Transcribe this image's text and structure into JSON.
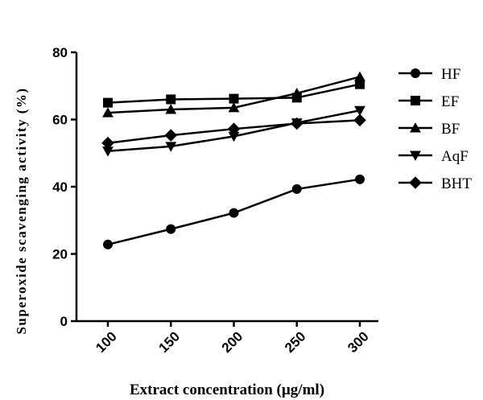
{
  "chart_data": {
    "type": "line",
    "title": "",
    "xlabel": "Extract concentration (µg/ml)",
    "ylabel": "Superoxide scavenging activity (%)",
    "x": [
      100,
      150,
      200,
      250,
      300
    ],
    "categories": [
      "100",
      "150",
      "200",
      "250",
      "300"
    ],
    "ylim": [
      0,
      80
    ],
    "yticks": [
      "0",
      "20",
      "40",
      "60",
      "80"
    ],
    "grid": false,
    "legend_position": "right",
    "series": [
      {
        "name": "HF",
        "marker": "circle",
        "values": [
          22.8,
          27.4,
          32.2,
          39.3,
          42.2
        ]
      },
      {
        "name": "EF",
        "marker": "square",
        "values": [
          65.0,
          66.0,
          66.2,
          66.5,
          70.5
        ]
      },
      {
        "name": "BF",
        "marker": "triangle-up",
        "values": [
          62.0,
          63.0,
          63.5,
          67.8,
          72.7
        ]
      },
      {
        "name": "AqF",
        "marker": "triangle-down",
        "values": [
          50.6,
          52.0,
          55.0,
          59.0,
          62.7
        ]
      },
      {
        "name": "BHT",
        "marker": "diamond",
        "values": [
          53.0,
          55.3,
          57.2,
          58.8,
          59.8
        ]
      }
    ]
  }
}
